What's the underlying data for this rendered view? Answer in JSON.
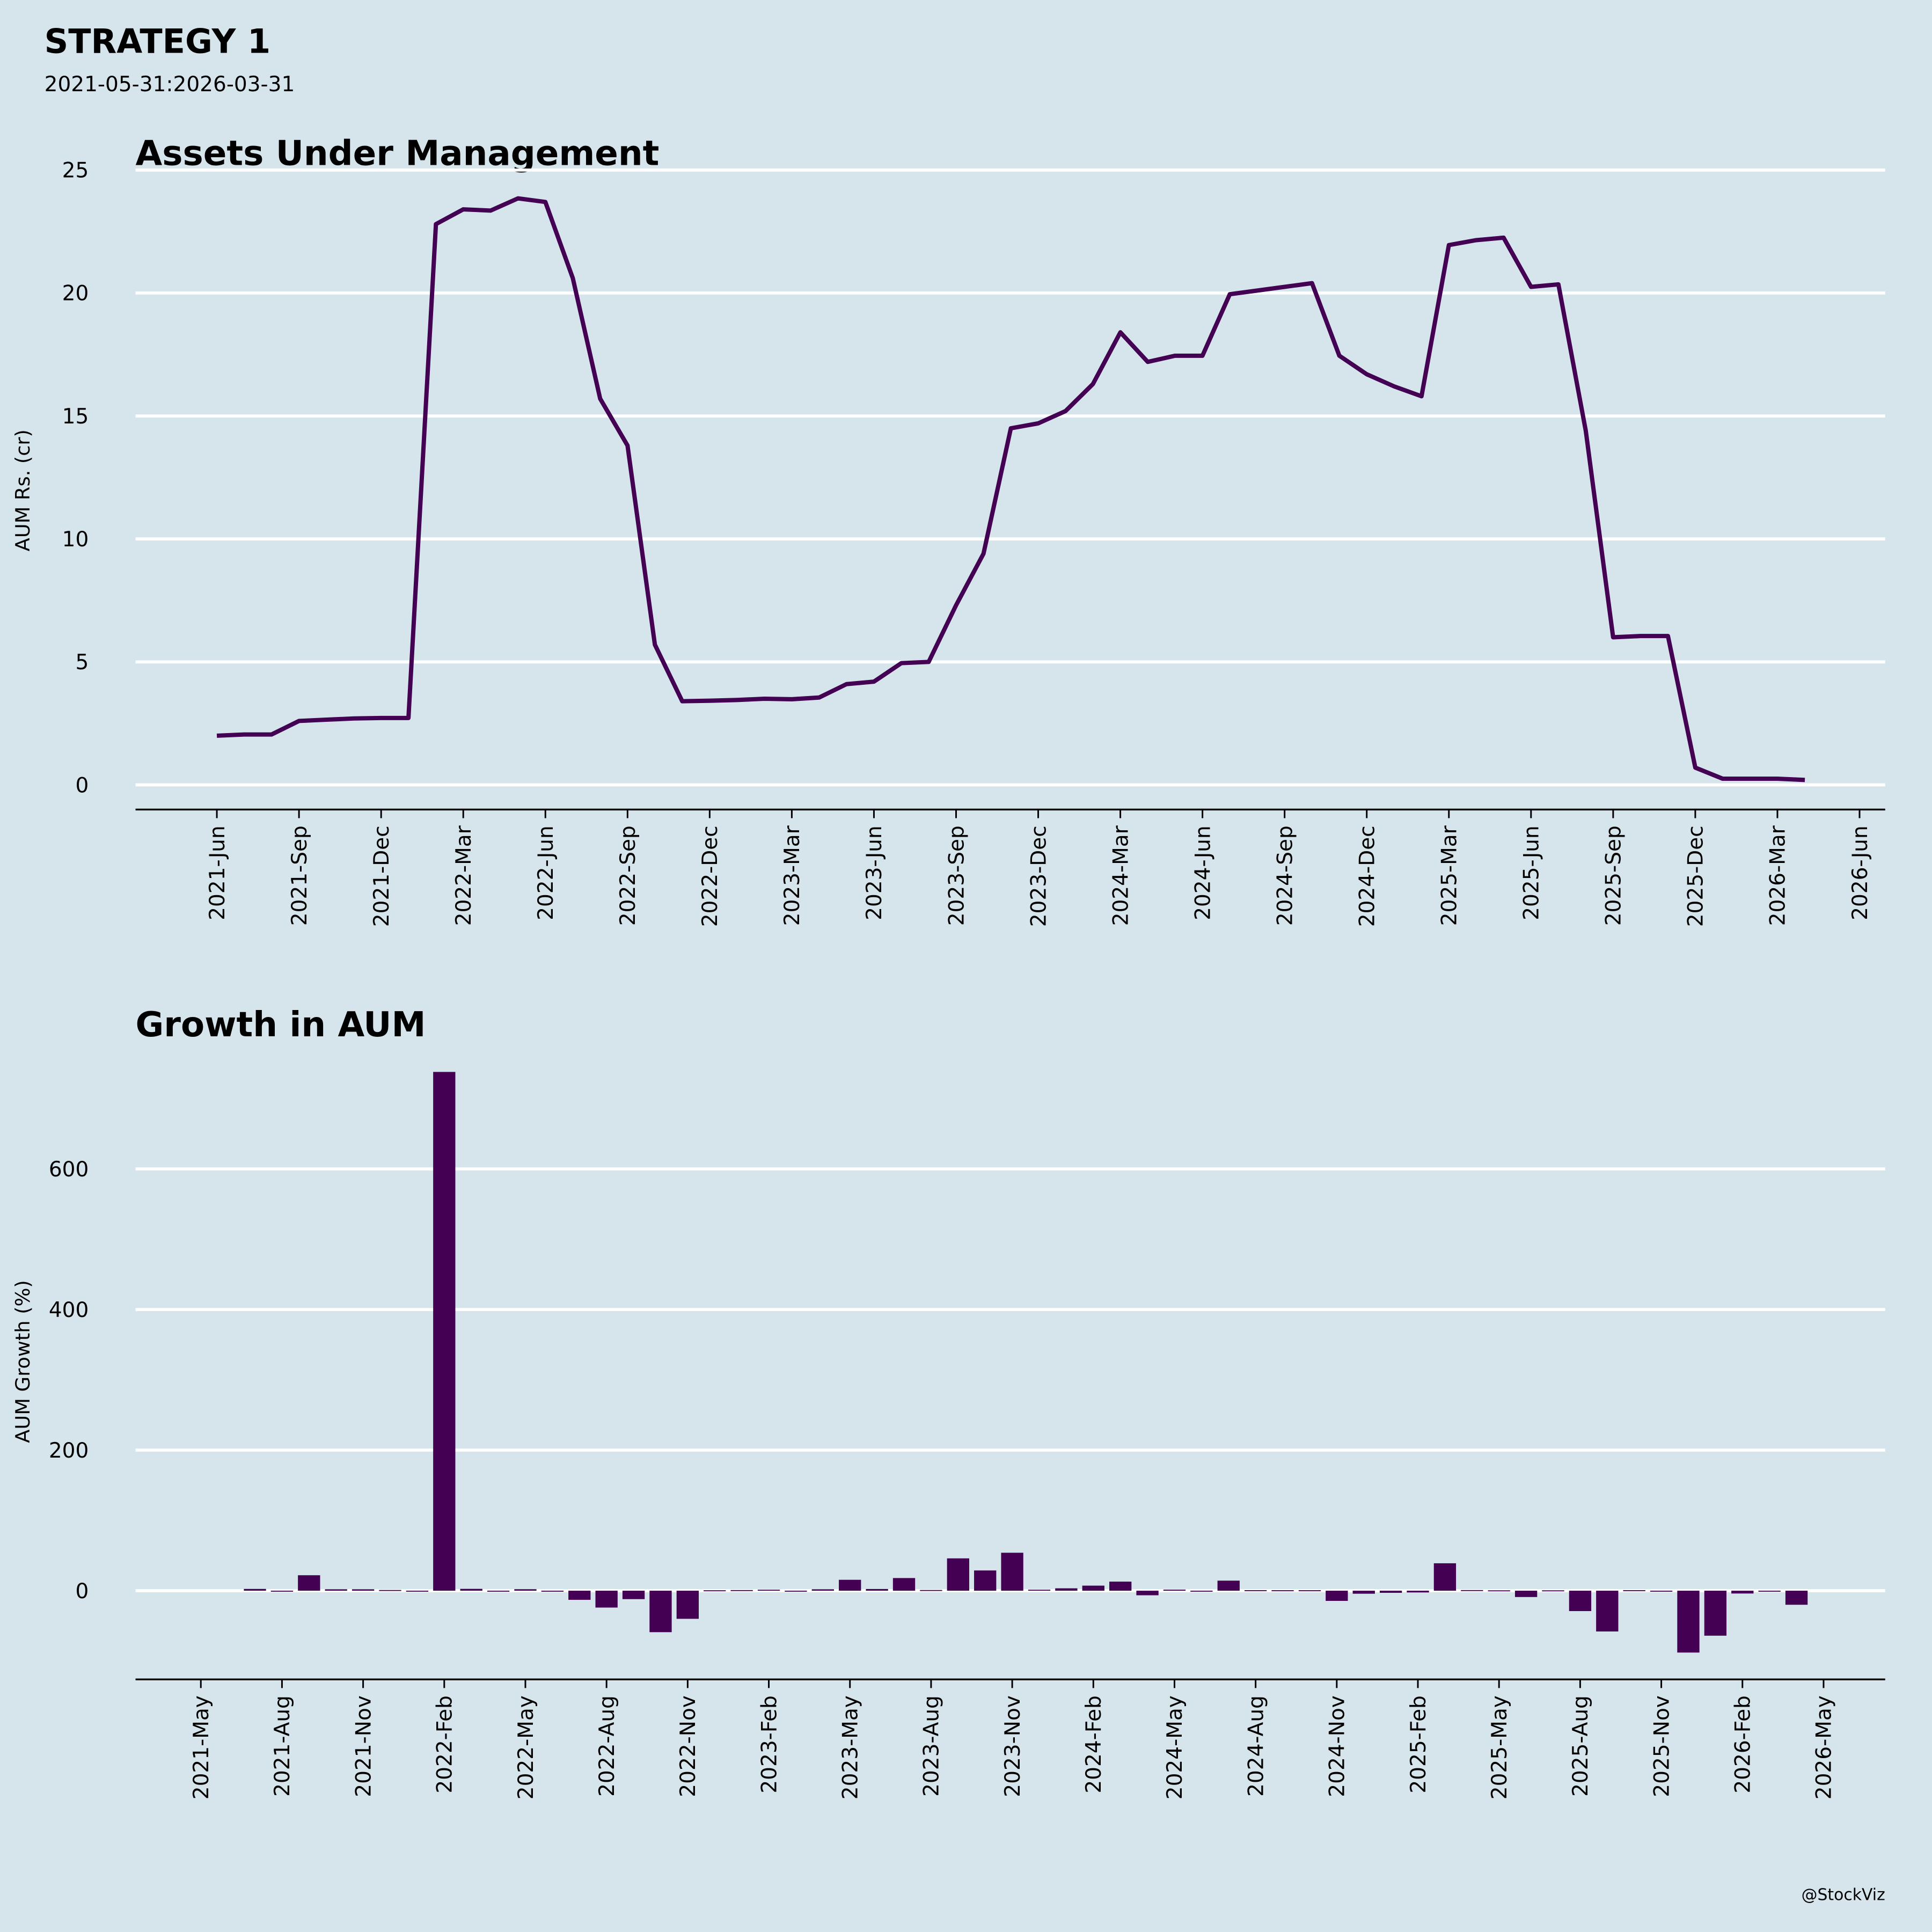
{
  "header": {
    "title": "STRATEGY 1",
    "subtitle": "2021-05-31:2026-03-31"
  },
  "credit": "@StockViz",
  "colors": {
    "background": "#d6e5ec",
    "series": "#440154",
    "grid": "#ffffff",
    "axis": "#000000"
  },
  "chart_data": [
    {
      "type": "line",
      "title": "Assets Under Management",
      "xlabel": "",
      "ylabel": "AUM Rs. (cr)",
      "ylim": [
        -1,
        25
      ],
      "yticks": [
        0,
        5,
        10,
        15,
        20,
        25
      ],
      "grid": "horizontal",
      "start_month": "2021-05-31",
      "x_tick_labels": [
        "2021-Jun",
        "2021-Sep",
        "2021-Dec",
        "2022-Mar",
        "2022-Jun",
        "2022-Sep",
        "2022-Dec",
        "2023-Mar",
        "2023-Jun",
        "2023-Sep",
        "2023-Dec",
        "2024-Mar",
        "2024-Jun",
        "2024-Sep",
        "2024-Dec",
        "2025-Mar",
        "2025-Jun",
        "2025-Sep",
        "2025-Dec",
        "2026-Mar",
        "2026-Jun"
      ],
      "values": [
        2.0,
        2.05,
        2.05,
        2.6,
        2.65,
        2.7,
        2.72,
        2.72,
        22.8,
        23.4,
        23.35,
        23.85,
        23.7,
        20.6,
        15.7,
        13.8,
        5.7,
        3.4,
        3.42,
        3.45,
        3.5,
        3.48,
        3.55,
        4.1,
        4.2,
        4.95,
        5.0,
        7.3,
        9.4,
        14.5,
        14.7,
        15.2,
        16.3,
        18.4,
        17.2,
        17.45,
        17.45,
        19.95,
        20.1,
        20.25,
        20.4,
        17.45,
        16.7,
        16.2,
        15.8,
        21.95,
        22.15,
        22.25,
        20.25,
        20.35,
        14.4,
        6.0,
        6.05,
        6.05,
        0.7,
        0.25,
        0.25,
        0.25,
        0.2
      ]
    },
    {
      "type": "bar",
      "title": "Growth in AUM",
      "xlabel": "",
      "ylabel": "AUM Growth (%)",
      "ylim": [
        -130,
        760
      ],
      "yticks": [
        0,
        200,
        400,
        600
      ],
      "grid": "horizontal",
      "start_month": "2021-06-30",
      "x_tick_labels": [
        "2021-May",
        "2021-Aug",
        "2021-Nov",
        "2022-Feb",
        "2022-May",
        "2022-Aug",
        "2022-Nov",
        "2023-Feb",
        "2023-May",
        "2023-Aug",
        "2023-Nov",
        "2024-Feb",
        "2024-May",
        "2024-Aug",
        "2024-Nov",
        "2025-Feb",
        "2025-May",
        "2025-Aug",
        "2025-Nov",
        "2026-Feb",
        "2026-May"
      ],
      "values": [
        2.5,
        0,
        22,
        2,
        2,
        1,
        0,
        738,
        2.6,
        -0.2,
        2.1,
        -0.6,
        -13,
        -24,
        -12,
        -59,
        -40,
        0.6,
        0.9,
        1.4,
        -0.6,
        2,
        15.5,
        2.4,
        18,
        1,
        46,
        28.8,
        54,
        1.4,
        3.4,
        7.2,
        12.9,
        -6.5,
        1.5,
        0,
        14.3,
        0.8,
        0.7,
        0.7,
        -14.5,
        -4.3,
        -3,
        -2.5,
        39,
        0.9,
        0.5,
        -9,
        0.5,
        -29,
        -58,
        0.8,
        0,
        -88,
        -64,
        -4,
        0,
        -20
      ]
    }
  ]
}
